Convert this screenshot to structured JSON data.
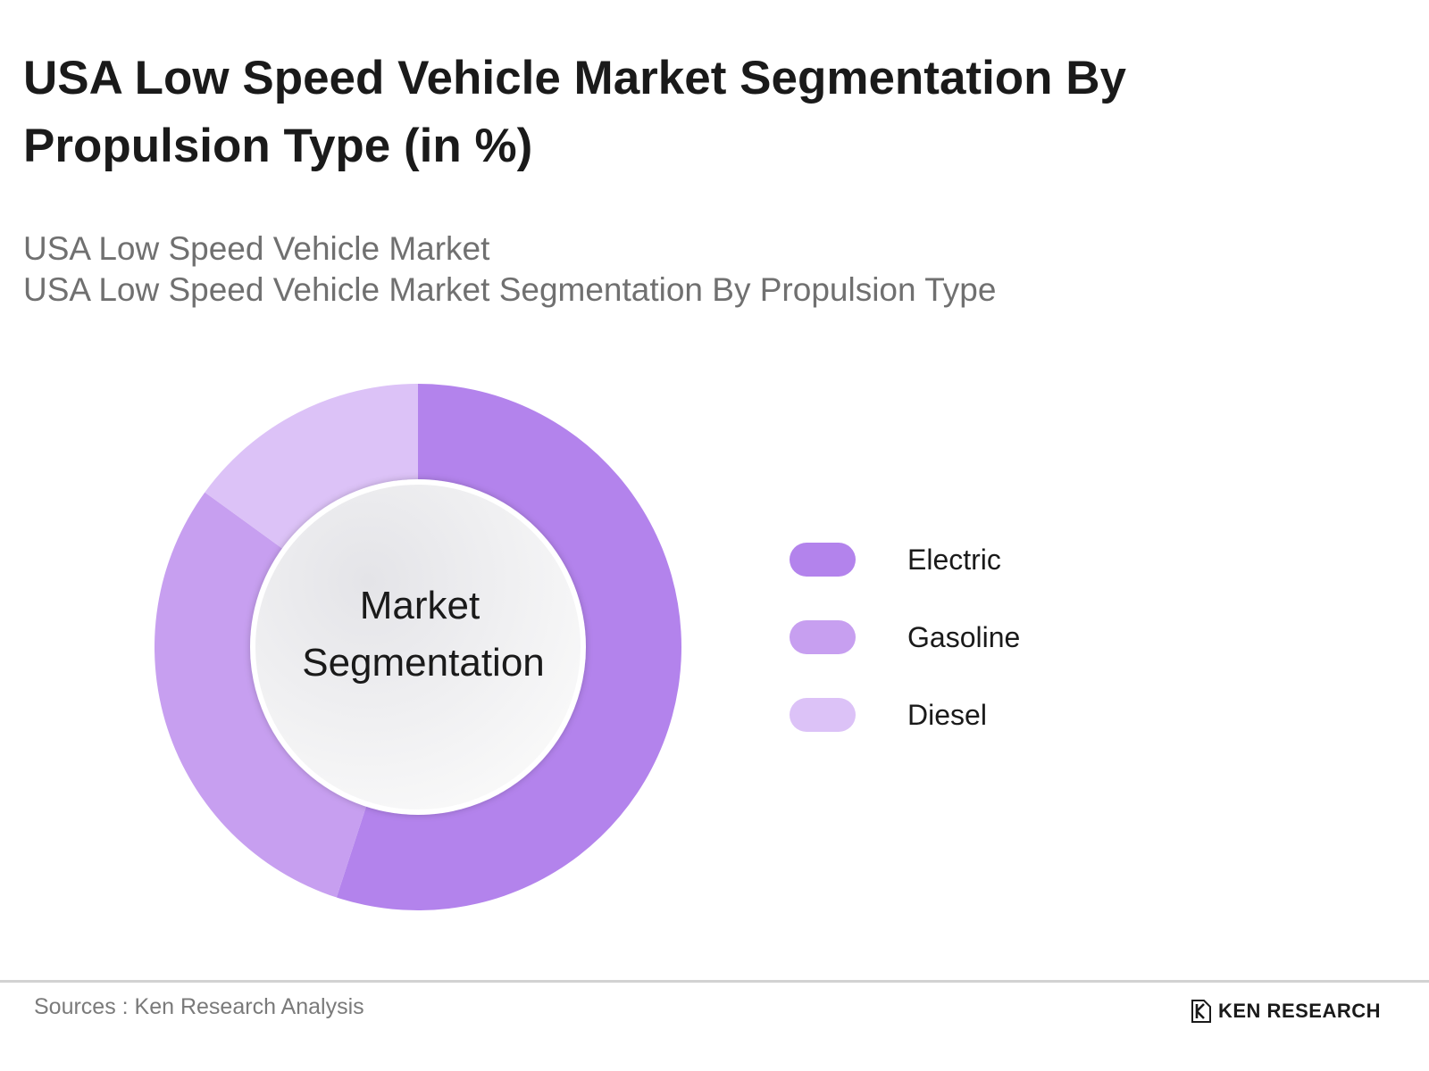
{
  "title": "USA Low Speed Vehicle Market Segmentation By Propulsion Type (in %)",
  "subtitle_line1": "USA Low Speed Vehicle Market",
  "subtitle_line2": "USA Low Speed Vehicle Market Segmentation By Propulsion Type",
  "chart_data": {
    "type": "pie",
    "donut": true,
    "center_label": [
      "Market",
      "Segmentation"
    ],
    "categories": [
      "Electric",
      "Gasoline",
      "Diesel"
    ],
    "values": [
      55,
      30,
      15
    ],
    "unit": "%",
    "colors": [
      "#b383ec",
      "#c79ff0",
      "#dcc2f7"
    ],
    "legend_position": "right"
  },
  "footer": {
    "source": "Sources : Ken Research Analysis",
    "brand": "KEN RESEARCH"
  }
}
